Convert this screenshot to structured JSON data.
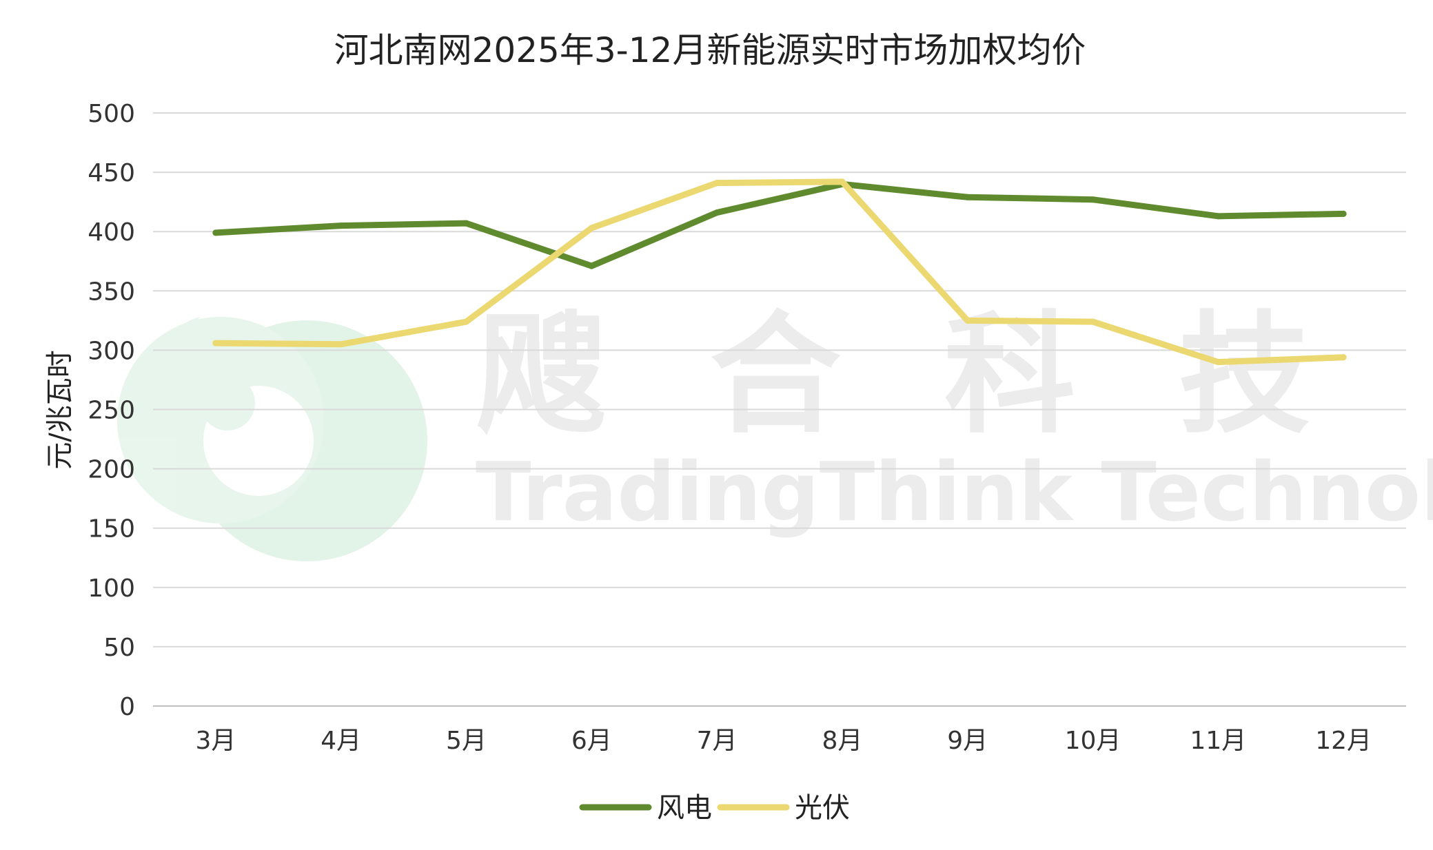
{
  "chart_data": {
    "type": "line",
    "title": "河北南网2025年3-12月新能源实时市场加权均价",
    "ylabel": "元/兆瓦时",
    "xlabel": "",
    "categories": [
      "3月",
      "4月",
      "5月",
      "6月",
      "7月",
      "8月",
      "9月",
      "10月",
      "11月",
      "12月"
    ],
    "ylim": [
      0,
      500
    ],
    "yticks": [
      0,
      50,
      100,
      150,
      200,
      250,
      300,
      350,
      400,
      450,
      500
    ],
    "grid": true,
    "legend_position": "bottom",
    "series": [
      {
        "name": "风电",
        "color": "#5f8a2e",
        "values": [
          399,
          405,
          407,
          371,
          416,
          440,
          429,
          427,
          413,
          415
        ]
      },
      {
        "name": "光伏",
        "color": "#ecd870",
        "values": [
          306,
          305,
          324,
          403,
          441,
          442,
          325,
          324,
          290,
          294
        ]
      }
    ]
  },
  "watermark": {
    "chinese": "飕合科技",
    "english": "TradingThink Technology",
    "logo": "tradingthink-logo"
  }
}
